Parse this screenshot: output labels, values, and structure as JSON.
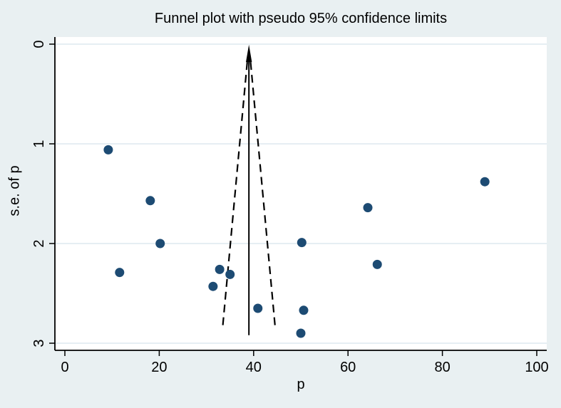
{
  "chart_data": {
    "type": "scatter",
    "title": "Funnel plot with pseudo 95% confidence limits",
    "xlabel": "p",
    "ylabel": "s.e. of p",
    "xlim": [
      0,
      100
    ],
    "ylim": [
      0,
      3
    ],
    "y_axis_reversed": true,
    "x_ticks": [
      0,
      20,
      40,
      60,
      80,
      100
    ],
    "y_ticks": [
      0,
      1,
      2,
      3
    ],
    "grid": "horizontal",
    "legend": "none",
    "points": [
      {
        "p": 9.2,
        "se": 1.06
      },
      {
        "p": 11.6,
        "se": 2.29
      },
      {
        "p": 18.1,
        "se": 1.57
      },
      {
        "p": 20.2,
        "se": 2.0
      },
      {
        "p": 31.4,
        "se": 2.43
      },
      {
        "p": 32.8,
        "se": 2.26
      },
      {
        "p": 35.0,
        "se": 2.31
      },
      {
        "p": 40.9,
        "se": 2.65
      },
      {
        "p": 50.0,
        "se": 2.9
      },
      {
        "p": 50.2,
        "se": 1.99
      },
      {
        "p": 50.6,
        "se": 2.67
      },
      {
        "p": 64.2,
        "se": 1.64
      },
      {
        "p": 66.2,
        "se": 2.21
      },
      {
        "p": 89.0,
        "se": 1.38
      }
    ],
    "funnel": {
      "center_p": 39,
      "ci_multiplier": 1.96,
      "solid_se_range": [
        0.1,
        2.92
      ],
      "dashed_se_range": [
        0.18,
        2.84
      ],
      "arrow_at_top": true
    },
    "colors": {
      "point": "#1d4b73",
      "background": "#e9f0f2",
      "plot_background": "#ffffff",
      "gridline": "#dde9ef",
      "axis": "#000000",
      "line": "#000000",
      "text": "#000000"
    }
  }
}
